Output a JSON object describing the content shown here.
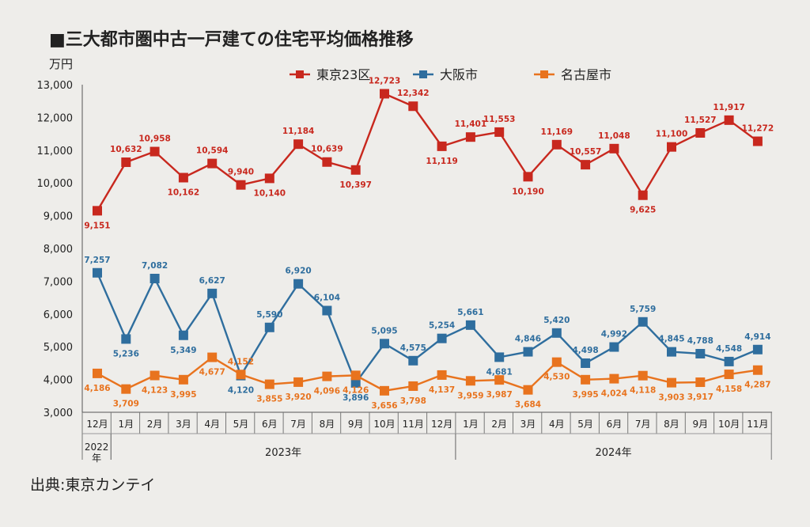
{
  "chart_data": {
    "type": "line",
    "title": "■三大都市圏中古一戸建ての住宅平均価格推移",
    "ylabel": "万円",
    "ylim": [
      3000,
      13000
    ],
    "yticks": [
      "3,000",
      "4,000",
      "5,000",
      "6,000",
      "7,000",
      "8,000",
      "9,000",
      "10,000",
      "11,000",
      "12,000",
      "13,000"
    ],
    "categories": [
      "12月",
      "1月",
      "2月",
      "3月",
      "4月",
      "5月",
      "6月",
      "7月",
      "8月",
      "9月",
      "10月",
      "11月",
      "12月",
      "1月",
      "2月",
      "3月",
      "4月",
      "5月",
      "6月",
      "7月",
      "8月",
      "9月",
      "10月",
      "11月"
    ],
    "year_groups": [
      {
        "label": "2022年",
        "from": 0,
        "to": 0
      },
      {
        "label": "2023年",
        "from": 1,
        "to": 12
      },
      {
        "label": "2024年",
        "from": 13,
        "to": 23
      }
    ],
    "legend_position": "top-center",
    "grid": false,
    "series": [
      {
        "name": "東京23区",
        "color": "#c8281e",
        "values": [
          9151,
          10632,
          10958,
          10162,
          10594,
          9940,
          10140,
          11184,
          10639,
          10397,
          12723,
          12342,
          11119,
          11401,
          11553,
          10190,
          11169,
          10557,
          11048,
          9625,
          11100,
          11527,
          11917,
          11272
        ],
        "labels": [
          "9,151",
          "10,632",
          "10,958",
          "10,162",
          "10,594",
          "9,940",
          "10,140",
          "11,184",
          "10,639",
          "10,397",
          "12,723",
          "12,342",
          "11,119",
          "11,401",
          "11,553",
          "10,190",
          "11,169",
          "10,557",
          "11,048",
          "9,625",
          "11,100",
          "11,527",
          "11,917",
          "11,272"
        ]
      },
      {
        "name": "大阪市",
        "color": "#2f6e9e",
        "values": [
          7257,
          5236,
          7082,
          5349,
          6627,
          4120,
          5590,
          6920,
          6104,
          3896,
          5095,
          4575,
          5254,
          5661,
          4681,
          4846,
          5420,
          4498,
          4992,
          5759,
          4845,
          4788,
          4548,
          4914
        ],
        "labels": [
          "7,257",
          "5,236",
          "7,082",
          "5,349",
          "6,627",
          "4,120",
          "5,590",
          "6,920",
          "6,104",
          "3,896",
          "5,095",
          "4,575",
          "5,254",
          "5,661",
          "4,681",
          "4,846",
          "5,420",
          "4,498",
          "4,992",
          "5,759",
          "4,845",
          "4,788",
          "4,548",
          "4,914"
        ]
      },
      {
        "name": "名古屋市",
        "color": "#e8731e",
        "values": [
          4186,
          3709,
          4123,
          3995,
          4677,
          4152,
          3855,
          3920,
          4096,
          4126,
          3656,
          3798,
          4137,
          3959,
          3987,
          3684,
          4530,
          3995,
          4024,
          4118,
          3903,
          3917,
          4158,
          4287
        ],
        "labels": [
          "4,186",
          "3,709",
          "4,123",
          "3,995",
          "4,677",
          "4,152",
          "3,855",
          "3,920",
          "4,096",
          "4,126",
          "3,656",
          "3,798",
          "4,137",
          "3,959",
          "3,987",
          "3,684",
          "4,530",
          "3,995",
          "4,024",
          "4,118",
          "3,903",
          "3,917",
          "4,158",
          "4,287"
        ]
      }
    ]
  },
  "source": "出典:東京カンテイ"
}
